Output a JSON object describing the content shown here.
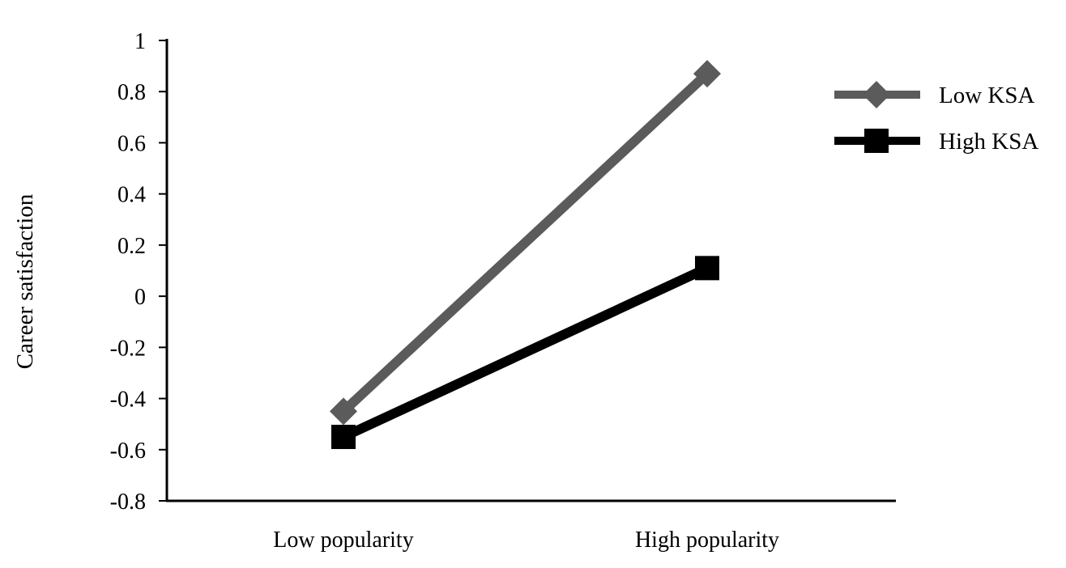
{
  "chart_data": {
    "type": "line",
    "title": "",
    "xlabel": "",
    "ylabel": "Career satisfaction",
    "categories": [
      "Low popularity",
      "High popularity"
    ],
    "ylim": [
      -0.8,
      1
    ],
    "yticks": [
      "1",
      "0.8",
      "0.6",
      "0.4",
      "0.2",
      "0",
      "-0.2",
      "-0.4",
      "-0.6",
      "-0.8"
    ],
    "grid": false,
    "legend_position": "top-right",
    "series": [
      {
        "name": "Low KSA",
        "values": [
          -0.45,
          0.87
        ],
        "color": "#5b5b5b",
        "marker": "diamond"
      },
      {
        "name": "High KSA",
        "values": [
          -0.55,
          0.11
        ],
        "color": "#000000",
        "marker": "square"
      }
    ]
  }
}
